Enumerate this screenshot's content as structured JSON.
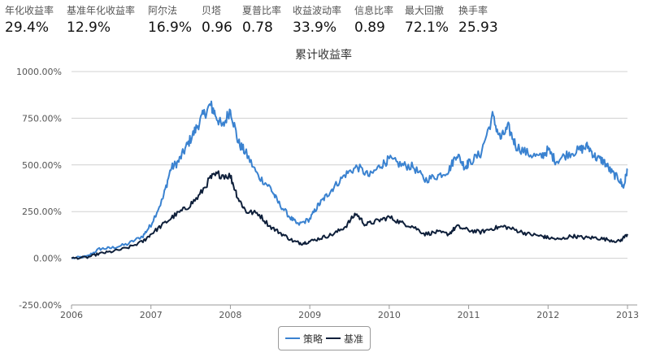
{
  "stats": [
    {
      "label": "年化收益率",
      "value": "29.4%"
    },
    {
      "label": "基准年化收益率",
      "value": "12.9%"
    },
    {
      "label": "阿尔法",
      "value": "16.9%"
    },
    {
      "label": "贝塔",
      "value": "0.96"
    },
    {
      "label": "夏普比率",
      "value": "0.78"
    },
    {
      "label": "收益波动率",
      "value": "33.9%"
    },
    {
      "label": "信息比率",
      "value": "0.89"
    },
    {
      "label": "最大回撤",
      "value": "72.1%"
    },
    {
      "label": "换手率",
      "value": "25.93"
    }
  ],
  "colors": {
    "strategy": "#3a82d0",
    "benchmark": "#0e1f3a",
    "grid": "#d0d0d0",
    "axis": "#666666"
  },
  "chart_data": {
    "type": "line",
    "title": "累计收益率",
    "xlabel": "",
    "ylabel": "",
    "x_ticks": [
      "2006",
      "2007",
      "2008",
      "2009",
      "2010",
      "2011",
      "2012",
      "2013"
    ],
    "y_ticks": [
      "-250.00%",
      "0.00%",
      "250.00%",
      "500.00%",
      "750.00%",
      "1000.00%"
    ],
    "ylim": [
      -250,
      1000
    ],
    "xlim": [
      2006.0,
      2013.0
    ],
    "grid": true,
    "legend_position": "bottom-center",
    "series": [
      {
        "name": "策略",
        "color": "#3a82d0",
        "x": [
          2006.0,
          2006.2,
          2006.35,
          2006.5,
          2006.7,
          2006.9,
          2007.0,
          2007.15,
          2007.25,
          2007.35,
          2007.45,
          2007.55,
          2007.65,
          2007.75,
          2007.8,
          2007.9,
          2008.0,
          2008.1,
          2008.2,
          2008.35,
          2008.5,
          2008.6,
          2008.75,
          2008.85,
          2009.0,
          2009.1,
          2009.2,
          2009.3,
          2009.45,
          2009.6,
          2009.75,
          2009.9,
          2010.0,
          2010.15,
          2010.3,
          2010.45,
          2010.6,
          2010.75,
          2010.85,
          2010.95,
          2011.0,
          2011.15,
          2011.3,
          2011.4,
          2011.5,
          2011.6,
          2011.75,
          2011.9,
          2012.0,
          2012.1,
          2012.25,
          2012.4,
          2012.5,
          2012.6,
          2012.7,
          2012.8,
          2012.9,
          2012.95,
          2013.0
        ],
        "values": [
          0,
          10,
          50,
          55,
          75,
          120,
          180,
          320,
          480,
          520,
          600,
          680,
          760,
          820,
          780,
          700,
          800,
          620,
          560,
          440,
          380,
          300,
          220,
          180,
          210,
          280,
          330,
          380,
          450,
          490,
          440,
          500,
          530,
          500,
          490,
          420,
          440,
          470,
          560,
          490,
          510,
          560,
          760,
          640,
          700,
          600,
          560,
          540,
          580,
          520,
          560,
          580,
          600,
          540,
          520,
          460,
          420,
          380,
          480
        ]
      },
      {
        "name": "基准",
        "color": "#0e1f3a",
        "x": [
          2006.0,
          2006.2,
          2006.35,
          2006.5,
          2006.7,
          2006.9,
          2007.0,
          2007.15,
          2007.3,
          2007.45,
          2007.6,
          2007.75,
          2007.85,
          2008.0,
          2008.1,
          2008.2,
          2008.35,
          2008.5,
          2008.65,
          2008.8,
          2008.9,
          2009.0,
          2009.15,
          2009.3,
          2009.45,
          2009.58,
          2009.7,
          2009.85,
          2010.0,
          2010.15,
          2010.3,
          2010.45,
          2010.6,
          2010.75,
          2010.85,
          2011.0,
          2011.15,
          2011.3,
          2011.45,
          2011.6,
          2011.75,
          2011.9,
          2012.0,
          2012.15,
          2012.3,
          2012.45,
          2012.6,
          2012.75,
          2012.9,
          2013.0
        ],
        "values": [
          0,
          5,
          25,
          35,
          55,
          90,
          130,
          180,
          230,
          270,
          330,
          430,
          450,
          440,
          320,
          250,
          240,
          170,
          130,
          90,
          80,
          90,
          110,
          130,
          170,
          240,
          180,
          200,
          220,
          190,
          170,
          130,
          140,
          130,
          170,
          150,
          140,
          160,
          170,
          150,
          130,
          120,
          110,
          100,
          120,
          110,
          110,
          100,
          90,
          130
        ]
      }
    ]
  }
}
